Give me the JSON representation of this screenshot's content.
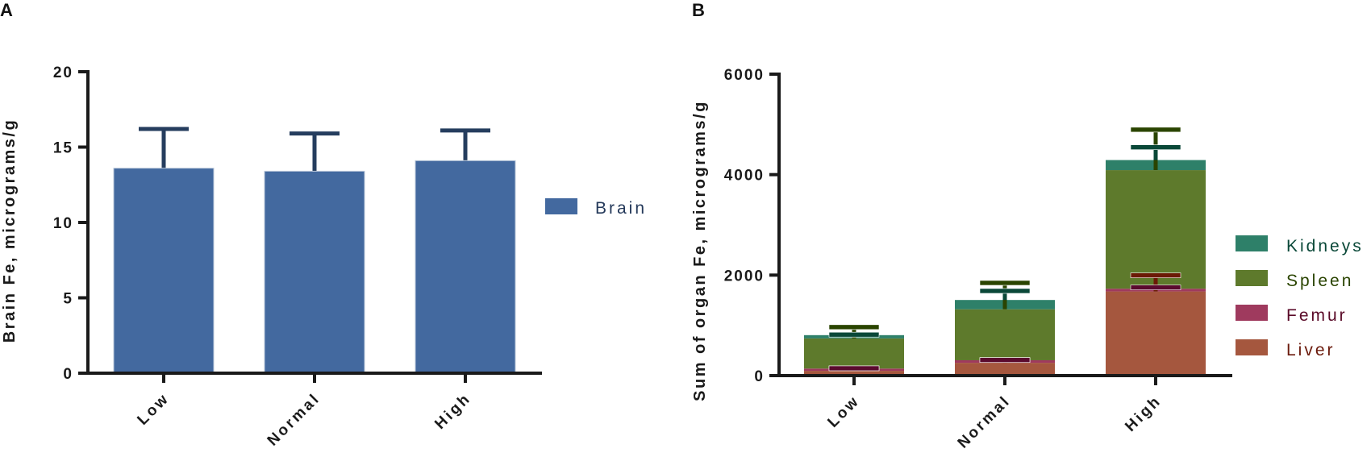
{
  "panels": {
    "a_label": "A",
    "b_label": "B"
  },
  "chart_data": [
    {
      "id": "A",
      "type": "bar",
      "title": "",
      "xlabel": "",
      "ylabel": "Brain Fe, micrograms/g",
      "ylim": [
        0,
        20
      ],
      "yticks": [
        0,
        5,
        10,
        15,
        20
      ],
      "categories": [
        "Low",
        "Normal",
        "High"
      ],
      "series": [
        {
          "name": "Brain",
          "color": "#43699f",
          "error_color": "#253d5e",
          "values": [
            13.6,
            13.4,
            14.1
          ],
          "error_upper": [
            16.2,
            15.9,
            16.1
          ]
        }
      ],
      "legend_position": "right",
      "grid": false
    },
    {
      "id": "B",
      "type": "stacked_bar",
      "title": "",
      "xlabel": "",
      "ylabel": "Sum of organ Fe, micrograms/g",
      "ylim": [
        0,
        6000
      ],
      "yticks": [
        0,
        2000,
        4000,
        6000
      ],
      "categories": [
        "Low",
        "Normal",
        "High"
      ],
      "series": [
        {
          "name": "Liver",
          "color": "#a5573e",
          "text_color": "#6b1a0c",
          "error_color": "#6b1a05",
          "values": [
            95,
            255,
            1675
          ],
          "error_upper": [
            145,
            310,
            1995
          ]
        },
        {
          "name": "Femur",
          "color": "#9f3a5e",
          "text_color": "#5a0a28",
          "error_color": "#5a0a2e",
          "values": [
            45,
            50,
            55
          ],
          "error_upper": [
            145,
            310,
            1755
          ]
        },
        {
          "name": "Spleen",
          "color": "#5e7a2c",
          "text_color": "#2a4400",
          "error_color": "#2a4400",
          "values": [
            600,
            1015,
            2360
          ],
          "error_upper": [
            965,
            1845,
            4895
          ]
        },
        {
          "name": "Kidneys",
          "color": "#2e8069",
          "text_color": "#0a4838",
          "error_color": "#0a4838",
          "values": [
            65,
            185,
            200
          ],
          "error_upper": [
            815,
            1685,
            4545
          ]
        }
      ],
      "totals": [
        805,
        1505,
        4290
      ],
      "legend_position": "right",
      "legend_order": [
        "Kidneys",
        "Spleen",
        "Femur",
        "Liver"
      ],
      "grid": false
    }
  ]
}
